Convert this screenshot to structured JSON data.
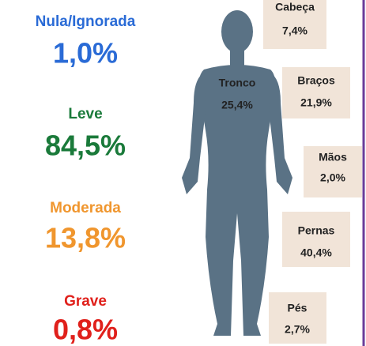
{
  "severity": [
    {
      "label": "Nula/Ignorada",
      "value": "1,0%"
    },
    {
      "label": "Leve",
      "value": "84,5%"
    },
    {
      "label": "Moderada",
      "value": "13,8%"
    },
    {
      "label": "Grave",
      "value": "0,8%"
    }
  ],
  "body_parts": [
    {
      "label": "Cabeça",
      "value": "7,4%"
    },
    {
      "label": "Tronco",
      "value": "25,4%"
    },
    {
      "label": "Braços",
      "value": "21,9%"
    },
    {
      "label": "Mãos",
      "value": "2,0%"
    },
    {
      "label": "Pernas",
      "value": "40,4%"
    },
    {
      "label": "Pés",
      "value": "2,7%"
    }
  ]
}
